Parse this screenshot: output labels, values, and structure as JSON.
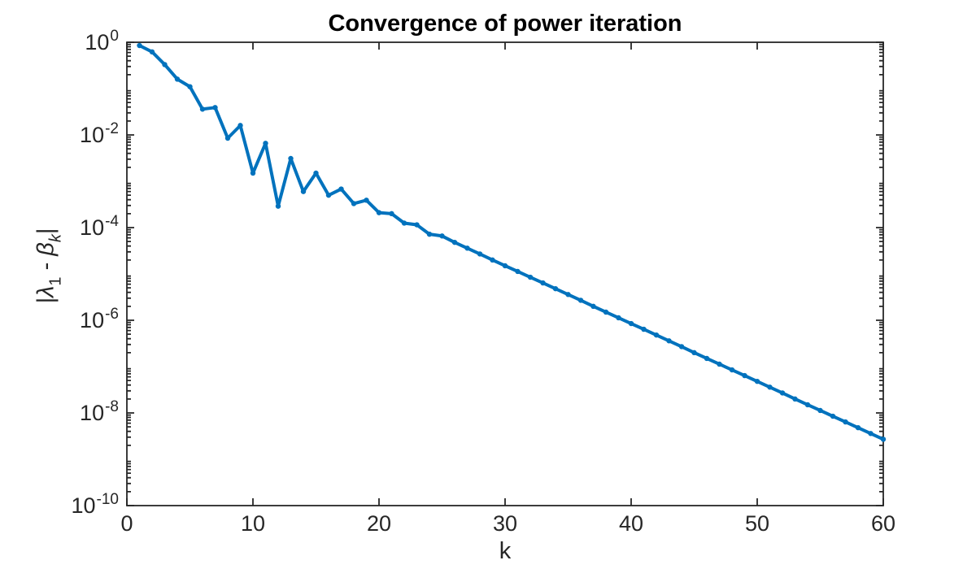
{
  "figure": {
    "background": "#ffffff"
  },
  "chart_data": {
    "type": "line",
    "title": "Convergence of power iteration",
    "xlabel": "k",
    "ylabel": "|λ_1 - β_k|",
    "ylabel_parts": [
      {
        "text": "|",
        "italic": false,
        "sub": false
      },
      {
        "text": "λ",
        "italic": true,
        "sub": false
      },
      {
        "text": "1",
        "italic": false,
        "sub": true
      },
      {
        "text": " - ",
        "italic": false,
        "sub": false
      },
      {
        "text": "β",
        "italic": true,
        "sub": false
      },
      {
        "text": "k",
        "italic": true,
        "sub": true
      },
      {
        "text": "|",
        "italic": false,
        "sub": false
      }
    ],
    "yscale": "log",
    "xlim": [
      0,
      60
    ],
    "ylim": [
      1e-10,
      1
    ],
    "xticks": [
      0,
      10,
      20,
      30,
      40,
      50,
      60
    ],
    "ytick_exponents": [
      0,
      -2,
      -4,
      -6,
      -8,
      -10
    ],
    "minor_ticks": true,
    "grid": false,
    "box": true,
    "legend": null,
    "line_color": "#0072BD",
    "axis_color": "#262626",
    "title_color": "#000000",
    "marker": "dot",
    "x": [
      1,
      2,
      3,
      4,
      5,
      6,
      7,
      8,
      9,
      10,
      11,
      12,
      13,
      14,
      15,
      16,
      17,
      18,
      19,
      20,
      21,
      22,
      23,
      24,
      25,
      26,
      27,
      28,
      29,
      30,
      31,
      32,
      33,
      34,
      35,
      36,
      37,
      38,
      39,
      40,
      41,
      42,
      43,
      44,
      45,
      46,
      47,
      48,
      49,
      50,
      51,
      52,
      53,
      54,
      55,
      56,
      57,
      58,
      59,
      60
    ],
    "y": [
      0.85,
      0.62,
      0.33,
      0.16,
      0.11,
      0.036,
      0.039,
      0.0085,
      0.016,
      0.0015,
      0.0066,
      0.00029,
      0.0031,
      0.0006,
      0.0015,
      0.0005,
      0.00068,
      0.00033,
      0.00039,
      0.00021,
      0.0002,
      0.000125,
      0.000115,
      7.2e-05,
      6.6e-05,
      4.8e-05,
      3.6e-05,
      2.7e-05,
      2e-05,
      1.5e-05,
      1.13e-05,
      8.5e-06,
      6.4e-06,
      4.8e-06,
      3.6e-06,
      2.7e-06,
      2e-06,
      1.5e-06,
      1.13e-06,
      8.5e-07,
      6.4e-07,
      4.8e-07,
      3.6e-07,
      2.7e-07,
      2e-07,
      1.5e-07,
      1.13e-07,
      8.5e-08,
      6.4e-08,
      4.8e-08,
      3.6e-08,
      2.7e-08,
      2e-08,
      1.5e-08,
      1.13e-08,
      8.5e-09,
      6.4e-09,
      4.8e-09,
      3.6e-09,
      2.7e-09
    ]
  }
}
